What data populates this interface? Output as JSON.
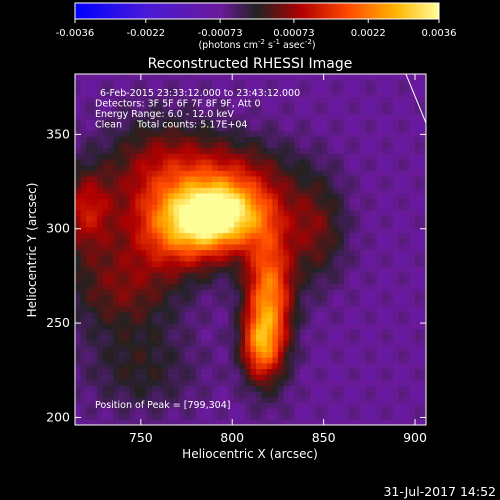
{
  "colorbar": {
    "ticks": [
      "-0.0036",
      "-0.0022",
      "-0.00073",
      "0.00073",
      "0.0022",
      "0.0036"
    ],
    "range": [
      -0.0036,
      0.0036
    ],
    "units_html": "(photons cm<tspan baseline-shift=\"super\" font-size=\"7\">-2</tspan> s<tspan baseline-shift=\"super\" font-size=\"7\">-1</tspan> asec<tspan baseline-shift=\"super\" font-size=\"7\">-2</tspan>)"
  },
  "chart_data": {
    "type": "heatmap",
    "title": "Reconstructed RHESSI Image",
    "xlabel": "Heliocentric X (arcsec)",
    "ylabel": "Heliocentric Y (arcsec)",
    "xlim": [
      714,
      906
    ],
    "ylim": [
      196,
      382
    ],
    "x_ticks": [
      750,
      800,
      850,
      900
    ],
    "y_ticks": [
      200,
      250,
      300,
      350
    ],
    "colormap": "rhessi_hot",
    "annotations": [
      "6-Feb-2015 23:33:12.000 to 23:43:12.000",
      "Detectors: 3F 5F 6F 7F 8F 9F, Att 0",
      "Energy Range: 6.0 - 12.0 keV",
      "Clean     Total counts: 5.17E+04"
    ],
    "peak_text": "Position of Peak = [799,304]",
    "peak": [
      799,
      304
    ],
    "sources": [
      {
        "x": 795,
        "y": 308,
        "sx": 18,
        "sy": 12,
        "amp": 0.85
      },
      {
        "x": 775,
        "y": 300,
        "sx": 20,
        "sy": 15,
        "amp": 0.6
      },
      {
        "x": 820,
        "y": 263,
        "sx": 9,
        "sy": 26,
        "amp": 0.75
      },
      {
        "x": 815,
        "y": 238,
        "sx": 7,
        "sy": 12,
        "amp": 0.45
      },
      {
        "x": 760,
        "y": 330,
        "sx": 22,
        "sy": 20,
        "amp": 0.35
      },
      {
        "x": 740,
        "y": 270,
        "sx": 22,
        "sy": 18,
        "amp": 0.3
      },
      {
        "x": 800,
        "y": 330,
        "sx": 24,
        "sy": 14,
        "amp": 0.3
      },
      {
        "x": 845,
        "y": 300,
        "sx": 12,
        "sy": 20,
        "amp": 0.3
      },
      {
        "x": 750,
        "y": 225,
        "sx": 22,
        "sy": 16,
        "amp": 0.18
      },
      {
        "x": 720,
        "y": 310,
        "sx": 10,
        "sy": 15,
        "amp": 0.4
      }
    ],
    "background_level": -0.18,
    "limb_line": [
      [
        895,
        382
      ],
      [
        906,
        356
      ]
    ]
  },
  "footer": {
    "timestamp": "31-Jul-2017 14:52"
  }
}
